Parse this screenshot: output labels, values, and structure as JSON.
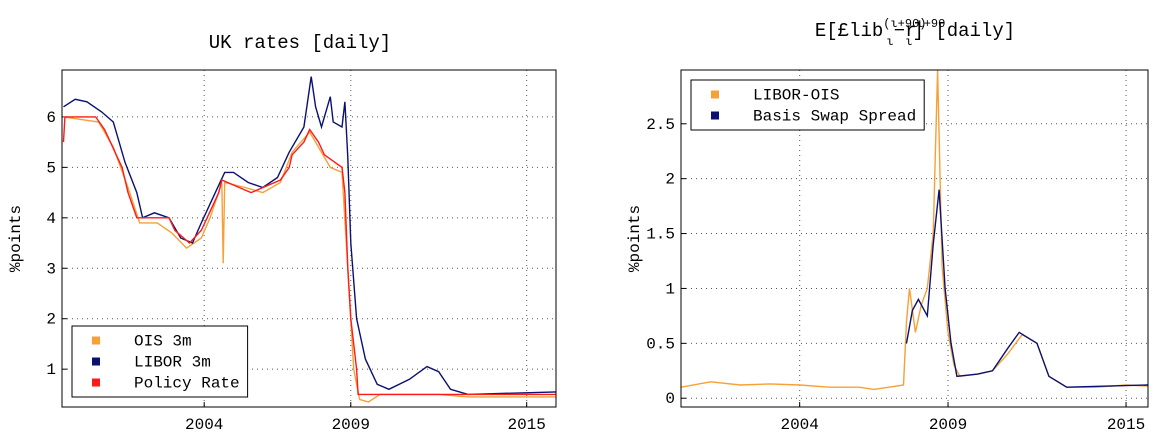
{
  "chart_data": [
    {
      "type": "line",
      "title": "UK rates [daily]",
      "ylabel": "%points",
      "xlim": [
        1999.15,
        2016.0
      ],
      "ylim": [
        0.25,
        6.93
      ],
      "xticks": [
        2004,
        2009,
        2015
      ],
      "yticks": [
        1,
        2,
        3,
        4,
        5,
        6
      ],
      "grid": true,
      "legend": "lower left",
      "series": [
        {
          "name": "OIS 3m",
          "color": "#f7a035",
          "x": [
            1999.2,
            2000.4,
            2000.9,
            2001.4,
            2001.8,
            2002.4,
            2002.9,
            2003.4,
            2003.9,
            2004.2,
            2004.6,
            2004.65,
            2004.7,
            2005.4,
            2006.0,
            2006.6,
            2007.0,
            2007.6,
            2007.9,
            2008.3,
            2008.7,
            2008.9,
            2009.1,
            2009.3,
            2009.6,
            2010.0,
            2012.0,
            2013.0,
            2016.0
          ],
          "values": [
            6.0,
            5.9,
            5.4,
            4.6,
            3.9,
            3.9,
            3.7,
            3.4,
            3.6,
            4.0,
            4.7,
            3.1,
            4.7,
            4.6,
            4.5,
            4.7,
            5.3,
            5.7,
            5.4,
            5.0,
            4.9,
            3.0,
            1.0,
            0.4,
            0.35,
            0.5,
            0.5,
            0.45,
            0.45
          ]
        },
        {
          "name": "LIBOR 3m",
          "color": "#0a1172",
          "x": [
            1999.2,
            1999.6,
            2000.0,
            2000.5,
            2000.9,
            2001.3,
            2001.7,
            2001.9,
            2002.3,
            2002.8,
            2003.2,
            2003.6,
            2003.9,
            2004.3,
            2004.7,
            2005.0,
            2005.5,
            2006.0,
            2006.5,
            2006.9,
            2007.4,
            2007.65,
            2007.8,
            2008.0,
            2008.3,
            2008.4,
            2008.7,
            2008.8,
            2008.9,
            2009.0,
            2009.2,
            2009.5,
            2009.9,
            2010.3,
            2011.0,
            2011.6,
            2012.0,
            2012.4,
            2013.0,
            2016.0
          ],
          "values": [
            6.2,
            6.35,
            6.3,
            6.1,
            5.9,
            5.1,
            4.5,
            4.0,
            4.1,
            4.0,
            3.6,
            3.5,
            3.9,
            4.4,
            4.9,
            4.9,
            4.7,
            4.6,
            4.8,
            5.3,
            5.8,
            6.8,
            6.2,
            5.8,
            6.4,
            5.9,
            5.8,
            6.3,
            5.2,
            3.5,
            2.0,
            1.2,
            0.7,
            0.6,
            0.8,
            1.05,
            0.95,
            0.6,
            0.5,
            0.55
          ]
        },
        {
          "name": "Policy Rate",
          "color": "#ff1a1a",
          "x": [
            1999.2,
            1999.25,
            2000.3,
            2000.6,
            2000.8,
            2001.0,
            2001.2,
            2001.4,
            2001.7,
            2002.8,
            2003.0,
            2003.5,
            2003.9,
            2004.1,
            2004.3,
            2004.5,
            2004.6,
            2005.6,
            2006.6,
            2006.9,
            2007.0,
            2007.4,
            2007.6,
            2007.9,
            2008.1,
            2008.7,
            2008.8,
            2008.9,
            2009.0,
            2009.1,
            2009.2,
            2009.25,
            2016.0
          ],
          "values": [
            5.5,
            6.0,
            6.0,
            5.75,
            5.5,
            5.25,
            5.0,
            4.5,
            4.0,
            4.0,
            3.75,
            3.5,
            3.75,
            4.0,
            4.25,
            4.5,
            4.75,
            4.5,
            4.75,
            5.0,
            5.25,
            5.5,
            5.75,
            5.5,
            5.25,
            5.0,
            4.5,
            3.0,
            2.0,
            1.5,
            1.0,
            0.5,
            0.5
          ]
        }
      ]
    },
    {
      "type": "line",
      "title": [
        "E[£lib",
        "(ι+90)",
        "ι",
        "−r",
        "ι+90",
        "ι",
        "] [daily]"
      ],
      "ylabel": "%points",
      "xlim": [
        2000.0,
        2015.74
      ],
      "ylim": [
        -0.08,
        2.99
      ],
      "xticks": [
        2004,
        2009,
        2015
      ],
      "yticks": [
        0,
        0.5,
        1,
        1.5,
        2,
        2.5
      ],
      "grid": true,
      "legend": "upper left",
      "series": [
        {
          "name": "LIBOR-OIS",
          "color": "#f7a035",
          "x": [
            2000.0,
            2001.0,
            2002.0,
            2003.0,
            2004.0,
            2005.0,
            2006.0,
            2006.5,
            2007.0,
            2007.5,
            2007.6,
            2007.7,
            2007.9,
            2008.1,
            2008.3,
            2008.5,
            2008.65,
            2008.8,
            2009.0,
            2009.2,
            2009.4,
            2010.0,
            2010.5,
            2011.0,
            2011.5,
            2012.0,
            2012.4,
            2013.0,
            2014.0,
            2015.0,
            2015.74
          ],
          "values": [
            0.1,
            0.15,
            0.12,
            0.13,
            0.12,
            0.1,
            0.1,
            0.08,
            0.1,
            0.12,
            0.7,
            1.0,
            0.6,
            0.85,
            1.0,
            1.5,
            2.99,
            1.2,
            0.6,
            0.3,
            0.2,
            0.22,
            0.25,
            0.4,
            0.58,
            0.5,
            0.2,
            0.1,
            0.1,
            0.12,
            0.11
          ]
        },
        {
          "name": "Basis Swap Spread",
          "color": "#0a1172",
          "x": [
            2007.6,
            2007.8,
            2008.0,
            2008.3,
            2008.5,
            2008.7,
            2008.9,
            2009.1,
            2009.3,
            2010.0,
            2010.5,
            2011.0,
            2011.4,
            2012.0,
            2012.4,
            2013.0,
            2015.74
          ],
          "values": [
            0.5,
            0.8,
            0.9,
            0.75,
            1.4,
            1.9,
            1.0,
            0.5,
            0.2,
            0.22,
            0.25,
            0.45,
            0.6,
            0.5,
            0.2,
            0.1,
            0.12
          ]
        }
      ]
    }
  ]
}
